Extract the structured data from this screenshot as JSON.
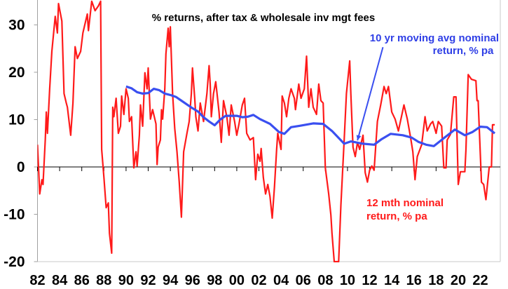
{
  "chart_data": {
    "type": "line",
    "title": "% returns, after tax & wholesale inv mgt fees",
    "xlabel": "",
    "ylabel": "",
    "xlim": [
      1982,
      2023.8
    ],
    "ylim": [
      -20,
      35
    ],
    "grid": false,
    "y_ticks": [
      {
        "value": 30,
        "label": "30"
      },
      {
        "value": 20,
        "label": "20"
      },
      {
        "value": 10,
        "label": "10"
      },
      {
        "value": 0,
        "label": "0"
      },
      {
        "value": -10,
        "label": "-10"
      },
      {
        "value": -20,
        "label": "-20"
      }
    ],
    "x_ticks": [
      {
        "value": 1982,
        "label": "82"
      },
      {
        "value": 1984,
        "label": "84"
      },
      {
        "value": 1986,
        "label": "86"
      },
      {
        "value": 1988,
        "label": "88"
      },
      {
        "value": 1990,
        "label": "90"
      },
      {
        "value": 1992,
        "label": "92"
      },
      {
        "value": 1994,
        "label": "94"
      },
      {
        "value": 1996,
        "label": "96"
      },
      {
        "value": 1998,
        "label": "98"
      },
      {
        "value": 2000,
        "label": "00"
      },
      {
        "value": 2002,
        "label": "02"
      },
      {
        "value": 2004,
        "label": "04"
      },
      {
        "value": 2006,
        "label": "06"
      },
      {
        "value": 2008,
        "label": "08"
      },
      {
        "value": 2010,
        "label": "10"
      },
      {
        "value": 2012,
        "label": "12"
      },
      {
        "value": 2014,
        "label": "14"
      },
      {
        "value": 2016,
        "label": "16"
      },
      {
        "value": 2018,
        "label": "18"
      },
      {
        "value": 2020,
        "label": "20"
      },
      {
        "value": 2022,
        "label": "22"
      }
    ],
    "series": [
      {
        "name": "12 mth nominal return, % pa",
        "label_lines": [
          "12 mth nominal",
          "return, % pa"
        ],
        "color": "#ff1a1a",
        "points": [
          [
            1982.0,
            4.7
          ],
          [
            1982.2,
            -5.7
          ],
          [
            1982.4,
            -2.7
          ],
          [
            1982.5,
            -3.7
          ],
          [
            1982.7,
            5.7
          ],
          [
            1982.8,
            11.6
          ],
          [
            1982.9,
            7.1
          ],
          [
            1983.1,
            16.5
          ],
          [
            1983.3,
            24.4
          ],
          [
            1983.6,
            31.8
          ],
          [
            1983.8,
            28.3
          ],
          [
            1983.9,
            34.5
          ],
          [
            1984.2,
            30.8
          ],
          [
            1984.4,
            15.5
          ],
          [
            1984.6,
            13.5
          ],
          [
            1984.7,
            12.6
          ],
          [
            1985.0,
            6.7
          ],
          [
            1985.2,
            13.5
          ],
          [
            1985.4,
            25.4
          ],
          [
            1985.6,
            22.9
          ],
          [
            1985.9,
            24.4
          ],
          [
            1986.1,
            28.3
          ],
          [
            1986.5,
            32.3
          ],
          [
            1986.6,
            28.8
          ],
          [
            1986.9,
            35
          ],
          [
            1987.2,
            33
          ],
          [
            1987.5,
            34
          ],
          [
            1987.7,
            35
          ],
          [
            1987.8,
            3.7
          ],
          [
            1988.0,
            -2.2
          ],
          [
            1988.2,
            -8.6
          ],
          [
            1988.4,
            -7.6
          ],
          [
            1988.5,
            -14
          ],
          [
            1988.7,
            -18.2
          ],
          [
            1988.8,
            12.6
          ],
          [
            1988.9,
            10.6
          ],
          [
            1989.1,
            14.5
          ],
          [
            1989.3,
            7.1
          ],
          [
            1989.5,
            8.6
          ],
          [
            1989.6,
            15
          ],
          [
            1989.8,
            11.1
          ],
          [
            1990.0,
            16.5
          ],
          [
            1990.2,
            14.5
          ],
          [
            1990.3,
            9.6
          ],
          [
            1990.5,
            10.6
          ],
          [
            1990.7,
            -0.2
          ],
          [
            1990.9,
            3.2
          ],
          [
            1991.0,
            0.2
          ],
          [
            1991.2,
            6.7
          ],
          [
            1991.3,
            13.1
          ],
          [
            1991.5,
            8.6
          ],
          [
            1991.7,
            19.9
          ],
          [
            1991.9,
            16.5
          ],
          [
            1992.0,
            20.9
          ],
          [
            1992.2,
            10.1
          ],
          [
            1992.4,
            12.1
          ],
          [
            1992.7,
            9.1
          ],
          [
            1992.8,
            0.5
          ],
          [
            1992.9,
            4.2
          ],
          [
            1993.1,
            5.7
          ],
          [
            1993.2,
            12.1
          ],
          [
            1993.3,
            10.1
          ],
          [
            1993.5,
            16.5
          ],
          [
            1993.6,
            23.9
          ],
          [
            1993.8,
            29.3
          ],
          [
            1993.9,
            25.4
          ],
          [
            1994.0,
            29.6
          ],
          [
            1994.2,
            15.5
          ],
          [
            1994.4,
            8.1
          ],
          [
            1994.6,
            3.2
          ],
          [
            1994.8,
            -3.2
          ],
          [
            1995.0,
            -10.6
          ],
          [
            1995.2,
            3.2
          ],
          [
            1995.5,
            7.1
          ],
          [
            1995.7,
            9.6
          ],
          [
            1995.9,
            15.5
          ],
          [
            1996.0,
            20.9
          ],
          [
            1996.2,
            14.5
          ],
          [
            1996.3,
            10.6
          ],
          [
            1996.5,
            7.6
          ],
          [
            1996.7,
            13.5
          ],
          [
            1997.0,
            9.6
          ],
          [
            1997.3,
            15.5
          ],
          [
            1997.5,
            21.4
          ],
          [
            1997.6,
            17.5
          ],
          [
            1997.7,
            10.6
          ],
          [
            1997.9,
            15.5
          ],
          [
            1998.1,
            18
          ],
          [
            1998.4,
            11.6
          ],
          [
            1998.6,
            5.2
          ],
          [
            1998.8,
            14
          ],
          [
            1999.1,
            10.6
          ],
          [
            1999.3,
            6.7
          ],
          [
            1999.5,
            13.1
          ],
          [
            1999.8,
            9.6
          ],
          [
            2000.0,
            6.7
          ],
          [
            2000.2,
            9.1
          ],
          [
            2000.5,
            13.1
          ],
          [
            2000.7,
            14.5
          ],
          [
            2000.9,
            7.1
          ],
          [
            2001.2,
            5.7
          ],
          [
            2001.5,
            6.2
          ],
          [
            2001.7,
            -2.7
          ],
          [
            2001.9,
            2.7
          ],
          [
            2002.1,
            1.2
          ],
          [
            2002.2,
            3.9
          ],
          [
            2002.4,
            -2.2
          ],
          [
            2002.6,
            -5.7
          ],
          [
            2002.8,
            -3.7
          ],
          [
            2003.0,
            -6.2
          ],
          [
            2003.2,
            -10.8
          ],
          [
            2003.4,
            -4.2
          ],
          [
            2003.6,
            3.7
          ],
          [
            2003.7,
            7.1
          ],
          [
            2004.0,
            3.7
          ],
          [
            2004.1,
            15
          ],
          [
            2004.3,
            13.5
          ],
          [
            2004.5,
            10.6
          ],
          [
            2004.7,
            14.5
          ],
          [
            2004.9,
            16.5
          ],
          [
            2005.2,
            14.5
          ],
          [
            2005.3,
            12.1
          ],
          [
            2005.6,
            17.5
          ],
          [
            2005.8,
            14.5
          ],
          [
            2006.1,
            16.5
          ],
          [
            2006.3,
            23.4
          ],
          [
            2006.5,
            12.6
          ],
          [
            2006.7,
            16.5
          ],
          [
            2006.9,
            12.6
          ],
          [
            2007.2,
            11.1
          ],
          [
            2007.4,
            17.5
          ],
          [
            2007.6,
            14
          ],
          [
            2007.8,
            13.5
          ],
          [
            2008.0,
            -0.2
          ],
          [
            2008.3,
            -5.7
          ],
          [
            2008.5,
            -10.1
          ],
          [
            2008.6,
            -14
          ],
          [
            2008.8,
            -20
          ],
          [
            2009.2,
            -20
          ],
          [
            2009.4,
            -8.1
          ],
          [
            2009.7,
            5.7
          ],
          [
            2009.9,
            15.5
          ],
          [
            2010.2,
            22.4
          ],
          [
            2010.3,
            15.5
          ],
          [
            2010.5,
            4.2
          ],
          [
            2010.7,
            2.2
          ],
          [
            2010.9,
            5.2
          ],
          [
            2011.1,
            3.7
          ],
          [
            2011.4,
            6.7
          ],
          [
            2011.6,
            -1.2
          ],
          [
            2011.8,
            -3.2
          ],
          [
            2012.0,
            -0.7
          ],
          [
            2012.2,
            0.2
          ],
          [
            2012.4,
            -0.7
          ],
          [
            2012.7,
            9.6
          ],
          [
            2013.0,
            13.1
          ],
          [
            2013.3,
            17
          ],
          [
            2013.5,
            15.5
          ],
          [
            2013.7,
            17
          ],
          [
            2014.0,
            11.6
          ],
          [
            2014.3,
            10.1
          ],
          [
            2014.6,
            7.6
          ],
          [
            2015.1,
            13.1
          ],
          [
            2015.4,
            10.1
          ],
          [
            2015.7,
            6.2
          ],
          [
            2015.9,
            3.2
          ],
          [
            2016.1,
            -2.7
          ],
          [
            2016.3,
            2.2
          ],
          [
            2016.7,
            4.7
          ],
          [
            2017.0,
            10.6
          ],
          [
            2017.2,
            7.6
          ],
          [
            2017.5,
            9.1
          ],
          [
            2017.7,
            9.6
          ],
          [
            2018.0,
            7.1
          ],
          [
            2018.2,
            9.6
          ],
          [
            2018.5,
            8.6
          ],
          [
            2018.7,
            -0.2
          ],
          [
            2018.9,
            -0.2
          ],
          [
            2019.0,
            5.7
          ],
          [
            2019.3,
            6.9
          ],
          [
            2019.6,
            14.8
          ],
          [
            2019.8,
            14.8
          ],
          [
            2020.0,
            -3.7
          ],
          [
            2020.2,
            -1
          ],
          [
            2020.6,
            -1
          ],
          [
            2020.7,
            3.7
          ],
          [
            2020.9,
            19.5
          ],
          [
            2021.2,
            18.5
          ],
          [
            2021.6,
            18.2
          ],
          [
            2021.7,
            14
          ],
          [
            2021.8,
            14
          ],
          [
            2022.1,
            -3.2
          ],
          [
            2022.3,
            -3.7
          ],
          [
            2022.5,
            -6.9
          ],
          [
            2022.6,
            -4.7
          ],
          [
            2022.8,
            0
          ],
          [
            2023.0,
            0
          ],
          [
            2023.1,
            8.9
          ],
          [
            2023.3,
            8.9
          ]
        ]
      },
      {
        "name": "10 yr moving avg nominal return, % pa",
        "label_lines": [
          "10 yr moving avg nominal",
          "return, % pa"
        ],
        "color": "#3a4ff0",
        "points": [
          [
            1990.0,
            17.0
          ],
          [
            1990.5,
            16.6
          ],
          [
            1991.0,
            15.8
          ],
          [
            1991.5,
            15.5
          ],
          [
            1992.0,
            15.6
          ],
          [
            1992.5,
            16.5
          ],
          [
            1993.0,
            16.2
          ],
          [
            1993.5,
            15.5
          ],
          [
            1994.0,
            15.2
          ],
          [
            1994.5,
            14.8
          ],
          [
            1995.0,
            14.0
          ],
          [
            1995.5,
            13.2
          ],
          [
            1996.0,
            12.4
          ],
          [
            1996.5,
            11.7
          ],
          [
            1997.0,
            10.5
          ],
          [
            1997.5,
            9.6
          ],
          [
            1998.0,
            8.8
          ],
          [
            1998.5,
            10.0
          ],
          [
            1999.0,
            10.8
          ],
          [
            1999.5,
            10.8
          ],
          [
            2000.0,
            10.8
          ],
          [
            2000.5,
            10.5
          ],
          [
            2001.0,
            10.6
          ],
          [
            2001.5,
            11.0
          ],
          [
            2002.1,
            10.1
          ],
          [
            2003.0,
            9.1
          ],
          [
            2003.8,
            7.4
          ],
          [
            2004.3,
            7.0
          ],
          [
            2004.9,
            8.4
          ],
          [
            2005.7,
            8.7
          ],
          [
            2006.9,
            9.2
          ],
          [
            2007.8,
            9.1
          ],
          [
            2008.6,
            7.6
          ],
          [
            2009.7,
            4.9
          ],
          [
            2010.3,
            5.4
          ],
          [
            2011.4,
            4.9
          ],
          [
            2012.4,
            4.7
          ],
          [
            2013.1,
            5.9
          ],
          [
            2013.9,
            7.0
          ],
          [
            2015.0,
            6.7
          ],
          [
            2015.8,
            6.2
          ],
          [
            2016.4,
            5.3
          ],
          [
            2017.1,
            4.7
          ],
          [
            2017.8,
            4.4
          ],
          [
            2018.6,
            5.9
          ],
          [
            2019.7,
            7.9
          ],
          [
            2020.6,
            6.7
          ],
          [
            2021.3,
            7.4
          ],
          [
            2022.0,
            8.5
          ],
          [
            2022.6,
            8.4
          ],
          [
            2023.3,
            7.1
          ]
        ]
      }
    ],
    "annotations": [
      {
        "type": "arrow",
        "from": [
          2013.2,
          25.3
        ],
        "to": [
          2010.9,
          5.6
        ],
        "color": "#3a4ff0",
        "points_to": "10 yr moving avg nominal return, % pa"
      }
    ],
    "legend": "none (inline labels)"
  }
}
